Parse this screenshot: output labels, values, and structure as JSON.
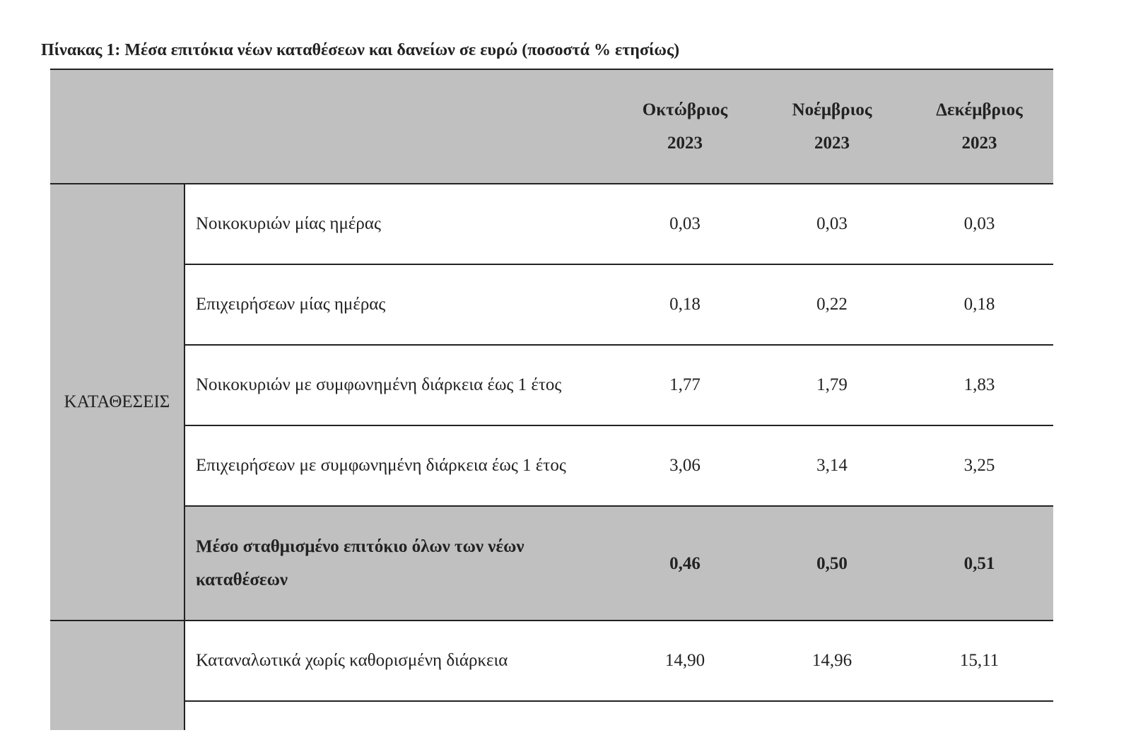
{
  "caption": "Πίνακας 1: Μέσα επιτόκια νέων καταθέσεων και δανείων σε ευρώ (ποσοστά % ετησίως)",
  "columns": [
    {
      "month": "Οκτώβριος",
      "year": "2023"
    },
    {
      "month": "Νοέμβριος",
      "year": "2023"
    },
    {
      "month": "Δεκέμβριος",
      "year": "2023"
    }
  ],
  "deposits": {
    "group_label": "ΚΑΤΑΘΕΣΕΙΣ",
    "rows": [
      {
        "label": "Νοικοκυριών μίας ημέρας",
        "values": [
          "0,03",
          "0,03",
          "0,03"
        ]
      },
      {
        "label": "Επιχειρήσεων μίας ημέρας",
        "values": [
          "0,18",
          "0,22",
          "0,18"
        ]
      },
      {
        "label": "Νοικοκυριών με συμφωνημένη διάρκεια έως 1 έτος",
        "values": [
          "1,77",
          "1,79",
          "1,83"
        ]
      },
      {
        "label": "Επιχειρήσεων με συμφωνημένη διάρκεια έως 1 έτος",
        "values": [
          "3,06",
          "3,14",
          "3,25"
        ]
      }
    ],
    "average": {
      "label": "Μέσο σταθμισμένο επιτόκιο όλων των νέων καταθέσεων",
      "values": [
        "0,46",
        "0,50",
        "0,51"
      ]
    }
  },
  "loans": {
    "rows": [
      {
        "label": "Καταναλωτικά χωρίς καθορισμένη διάρκεια",
        "values": [
          "14,90",
          "14,96",
          "15,11"
        ]
      }
    ]
  }
}
